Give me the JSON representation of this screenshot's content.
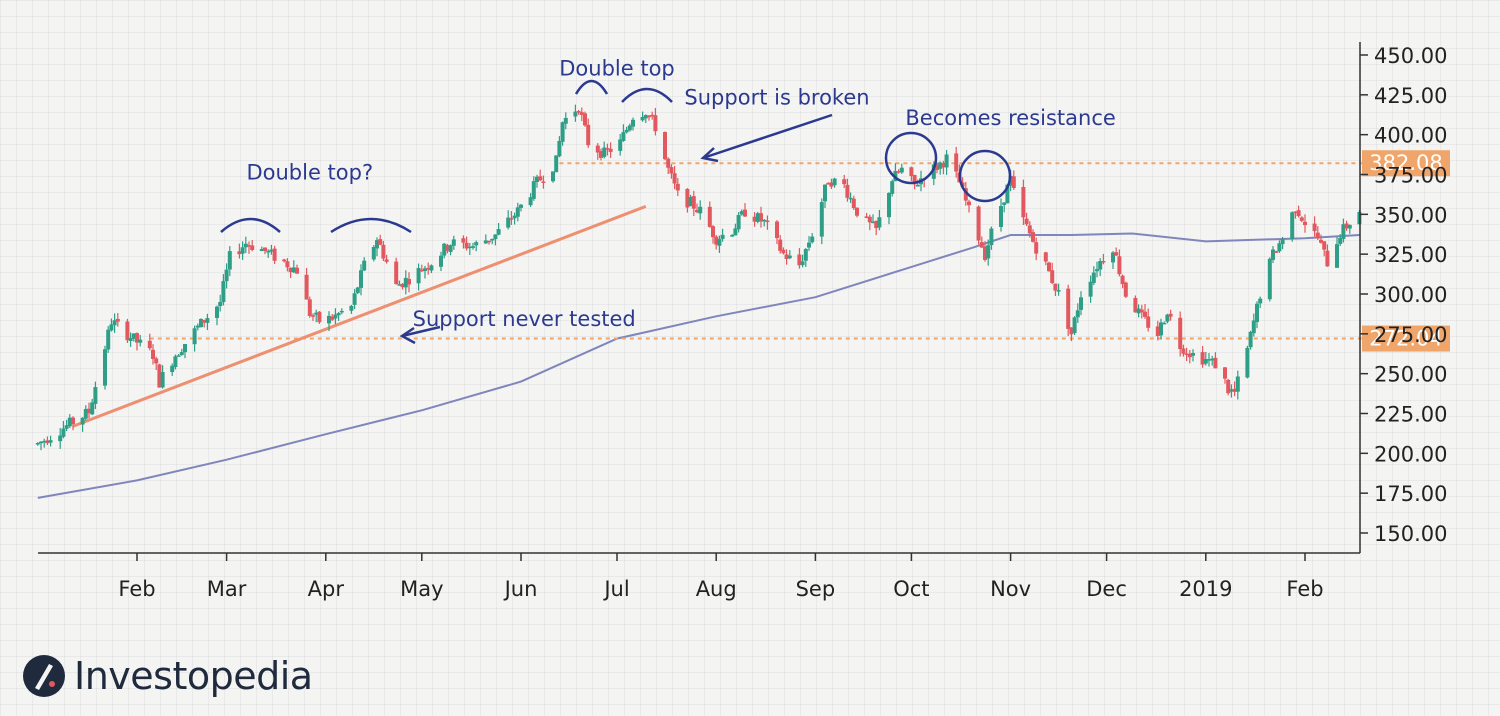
{
  "brand": {
    "name": "Investopedia"
  },
  "colors": {
    "bull": "#2e9e86",
    "bear": "#e2585e",
    "moving_average": "#7f86bb",
    "trendline": "#ee8f70",
    "level": "#f0a66a",
    "annotation": "#2b3a8f",
    "axis": "#333333"
  },
  "chart_data": {
    "type": "candlestick",
    "title": "",
    "xlabel": "",
    "ylabel": "",
    "ylim": [
      140,
      460
    ],
    "y_ticks": [
      "150.00",
      "175.00",
      "200.00",
      "225.00",
      "250.00",
      "275.00",
      "300.00",
      "325.00",
      "350.00",
      "375.00",
      "400.00",
      "425.00",
      "450.00"
    ],
    "x_ticks": [
      {
        "label": "Feb",
        "date": "2018-02-01"
      },
      {
        "label": "Mar",
        "date": "2018-03-01"
      },
      {
        "label": "Apr",
        "date": "2018-04-01"
      },
      {
        "label": "May",
        "date": "2018-05-01"
      },
      {
        "label": "Jun",
        "date": "2018-06-01"
      },
      {
        "label": "Jul",
        "date": "2018-07-01"
      },
      {
        "label": "Aug",
        "date": "2018-08-01"
      },
      {
        "label": "Sep",
        "date": "2018-09-01"
      },
      {
        "label": "Oct",
        "date": "2018-10-01"
      },
      {
        "label": "Nov",
        "date": "2018-11-01"
      },
      {
        "label": "Dec",
        "date": "2018-12-01"
      },
      {
        "label": "2019",
        "date": "2019-01-01"
      },
      {
        "label": "Feb",
        "date": "2019-02-01"
      }
    ],
    "x_range": [
      "2018-01-01",
      "2019-02-18"
    ],
    "price_path": [
      [
        "2018-01-01",
        206
      ],
      [
        "2018-01-17",
        226
      ],
      [
        "2018-01-24",
        283
      ],
      [
        "2018-02-01",
        270
      ],
      [
        "2018-02-06",
        262
      ],
      [
        "2018-02-08",
        245
      ],
      [
        "2018-02-13",
        262
      ],
      [
        "2018-02-20",
        279
      ],
      [
        "2018-02-27",
        295
      ],
      [
        "2018-03-02",
        323
      ],
      [
        "2018-03-07",
        332
      ],
      [
        "2018-03-12",
        328
      ],
      [
        "2018-03-19",
        320
      ],
      [
        "2018-03-23",
        315
      ],
      [
        "2018-03-27",
        288
      ],
      [
        "2018-03-30",
        283
      ],
      [
        "2018-04-03",
        285
      ],
      [
        "2018-04-09",
        292
      ],
      [
        "2018-04-13",
        318
      ],
      [
        "2018-04-17",
        335
      ],
      [
        "2018-04-23",
        305
      ],
      [
        "2018-04-27",
        310
      ],
      [
        "2018-05-04",
        320
      ],
      [
        "2018-05-10",
        332
      ],
      [
        "2018-05-17",
        330
      ],
      [
        "2018-05-24",
        337
      ],
      [
        "2018-05-31",
        352
      ],
      [
        "2018-06-06",
        370
      ],
      [
        "2018-06-12",
        383
      ],
      [
        "2018-06-14",
        408
      ],
      [
        "2018-06-19",
        418
      ],
      [
        "2018-06-22",
        395
      ],
      [
        "2018-06-27",
        388
      ],
      [
        "2018-07-02",
        395
      ],
      [
        "2018-07-06",
        412
      ],
      [
        "2018-07-10",
        415
      ],
      [
        "2018-07-13",
        405
      ],
      [
        "2018-07-17",
        378
      ],
      [
        "2018-07-20",
        362
      ],
      [
        "2018-07-24",
        357
      ],
      [
        "2018-07-27",
        352
      ],
      [
        "2018-08-01",
        335
      ],
      [
        "2018-08-06",
        340
      ],
      [
        "2018-08-10",
        352
      ],
      [
        "2018-08-16",
        345
      ],
      [
        "2018-08-22",
        325
      ],
      [
        "2018-08-27",
        318
      ],
      [
        "2018-08-31",
        338
      ],
      [
        "2018-09-05",
        372
      ],
      [
        "2018-09-10",
        368
      ],
      [
        "2018-09-15",
        348
      ],
      [
        "2018-09-20",
        340
      ],
      [
        "2018-09-25",
        372
      ],
      [
        "2018-09-28",
        378
      ],
      [
        "2018-10-02",
        368
      ],
      [
        "2018-10-05",
        375
      ],
      [
        "2018-10-09",
        380
      ],
      [
        "2018-10-12",
        385
      ],
      [
        "2018-10-16",
        370
      ],
      [
        "2018-10-19",
        352
      ],
      [
        "2018-10-24",
        325
      ],
      [
        "2018-10-27",
        345
      ],
      [
        "2018-11-01",
        372
      ],
      [
        "2018-11-03",
        355
      ],
      [
        "2018-11-08",
        333
      ],
      [
        "2018-11-12",
        318
      ],
      [
        "2018-11-16",
        300
      ],
      [
        "2018-11-20",
        275
      ],
      [
        "2018-11-23",
        300
      ],
      [
        "2018-11-28",
        318
      ],
      [
        "2018-12-03",
        330
      ],
      [
        "2018-12-07",
        300
      ],
      [
        "2018-12-12",
        285
      ],
      [
        "2018-12-17",
        275
      ],
      [
        "2018-12-20",
        290
      ],
      [
        "2018-12-24",
        268
      ],
      [
        "2018-12-28",
        262
      ],
      [
        "2019-01-02",
        258
      ],
      [
        "2019-01-05",
        255
      ],
      [
        "2019-01-08",
        240
      ],
      [
        "2019-01-10",
        238
      ],
      [
        "2019-01-14",
        265
      ],
      [
        "2019-01-18",
        300
      ],
      [
        "2019-01-22",
        325
      ],
      [
        "2019-01-25",
        335
      ],
      [
        "2019-01-29",
        355
      ],
      [
        "2019-02-01",
        345
      ],
      [
        "2019-02-05",
        335
      ],
      [
        "2019-02-08",
        320
      ],
      [
        "2019-02-12",
        338
      ],
      [
        "2019-02-18",
        352
      ]
    ],
    "moving_average": [
      [
        "2018-01-01",
        172
      ],
      [
        "2018-02-01",
        183
      ],
      [
        "2018-03-01",
        196
      ],
      [
        "2018-04-01",
        212
      ],
      [
        "2018-05-01",
        227
      ],
      [
        "2018-06-01",
        245
      ],
      [
        "2018-07-01",
        272
      ],
      [
        "2018-08-01",
        286
      ],
      [
        "2018-09-01",
        298
      ],
      [
        "2018-10-01",
        317
      ],
      [
        "2018-10-20",
        329
      ],
      [
        "2018-11-01",
        337
      ],
      [
        "2018-11-20",
        337
      ],
      [
        "2018-12-09",
        338
      ],
      [
        "2019-01-01",
        333
      ],
      [
        "2019-02-01",
        335
      ],
      [
        "2019-02-18",
        337
      ]
    ],
    "levels": [
      {
        "value": 382.08,
        "label": "382.08",
        "from": "2018-06-13"
      },
      {
        "value": 272.04,
        "label": "272.04",
        "from": "2018-02-05"
      }
    ],
    "trendline": [
      [
        "2018-01-12",
        217
      ],
      [
        "2018-07-10",
        355
      ]
    ],
    "annotations": [
      {
        "text": "Double top?",
        "date": "2018-03-27",
        "value": 372,
        "kind": "text"
      },
      {
        "text": "Double top",
        "date": "2018-07-01",
        "value": 437,
        "kind": "text"
      },
      {
        "text": "Support is broken",
        "date": "2018-08-20",
        "value": 419,
        "kind": "text"
      },
      {
        "text": "Becomes resistance",
        "date": "2018-11-01",
        "value": 406,
        "kind": "text"
      },
      {
        "text": "Support never tested",
        "date": "2018-06-02",
        "value": 280,
        "kind": "text"
      }
    ]
  }
}
